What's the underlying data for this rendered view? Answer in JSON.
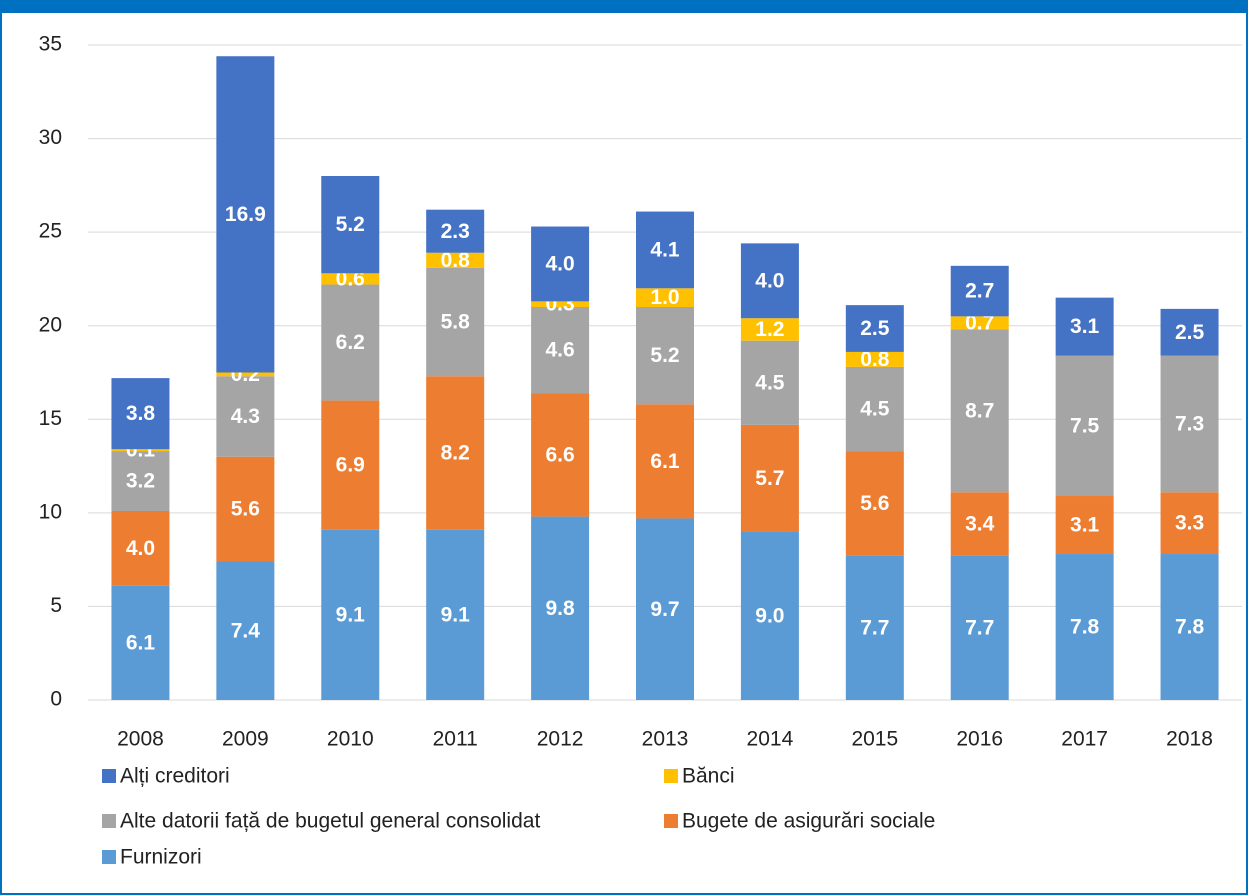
{
  "chart_data": {
    "type": "stacked_bar",
    "categories": [
      "2008",
      "2009",
      "2010",
      "2011",
      "2012",
      "2013",
      "2014",
      "2015",
      "2016",
      "2017",
      "2018"
    ],
    "ylim": [
      0,
      35
    ],
    "yticks": [
      0,
      5,
      10,
      15,
      20,
      25,
      30,
      35
    ],
    "grid": true,
    "series": [
      {
        "name": "Alți creditori",
        "color": "#4472c4",
        "values": [
          3.8,
          16.9,
          5.2,
          2.3,
          4.0,
          4.1,
          4.0,
          2.5,
          2.7,
          3.1,
          2.5
        ],
        "value_labels": [
          "3.8",
          "16.9",
          "5.2",
          "2.3",
          "4.0",
          "4.1",
          "4.0",
          "2.5",
          "2.7",
          "3.1",
          "2.5"
        ]
      },
      {
        "name": "Bănci",
        "color": "#ffc000",
        "values": [
          0.1,
          0.2,
          0.6,
          0.8,
          0.3,
          1.0,
          1.2,
          0.8,
          0.7,
          null,
          null
        ],
        "value_labels": [
          "0.1",
          "0.2",
          "0.6",
          "0.8",
          "0.3",
          "1.0",
          "1.2",
          "0.8",
          "0.7",
          null,
          null
        ]
      },
      {
        "name": "Alte datorii față de bugetul general consolidat",
        "color": "#a5a5a5",
        "values": [
          3.2,
          4.3,
          6.2,
          5.8,
          4.6,
          5.2,
          4.5,
          4.5,
          8.7,
          7.5,
          7.3
        ],
        "value_labels": [
          "3.2",
          "4.3",
          "6.2",
          "5.8",
          "4.6",
          "5.2",
          "4.5",
          "4.5",
          "8.7",
          "7.5",
          "7.3"
        ]
      },
      {
        "name": "Bugete de asigurări sociale",
        "color": "#ed7d31",
        "values": [
          4.0,
          5.6,
          6.9,
          8.2,
          6.6,
          6.1,
          5.7,
          5.6,
          3.4,
          3.1,
          3.3
        ],
        "value_labels": [
          "4.0",
          "5.6",
          "6.9",
          "8.2",
          "6.6",
          "6.1",
          "5.7",
          "5.6",
          "3.4",
          "3.1",
          "3.3"
        ]
      },
      {
        "name": "Furnizori",
        "color": "#5b9bd5",
        "values": [
          6.1,
          7.4,
          9.1,
          9.1,
          9.8,
          9.7,
          9.0,
          7.7,
          7.7,
          7.8,
          7.8
        ],
        "value_labels": [
          "6.1",
          "7.4",
          "9.1",
          "9.1",
          "9.8",
          "9.7",
          "9.0",
          "7.7",
          "7.7",
          "7.8",
          "7.8"
        ]
      }
    ]
  }
}
